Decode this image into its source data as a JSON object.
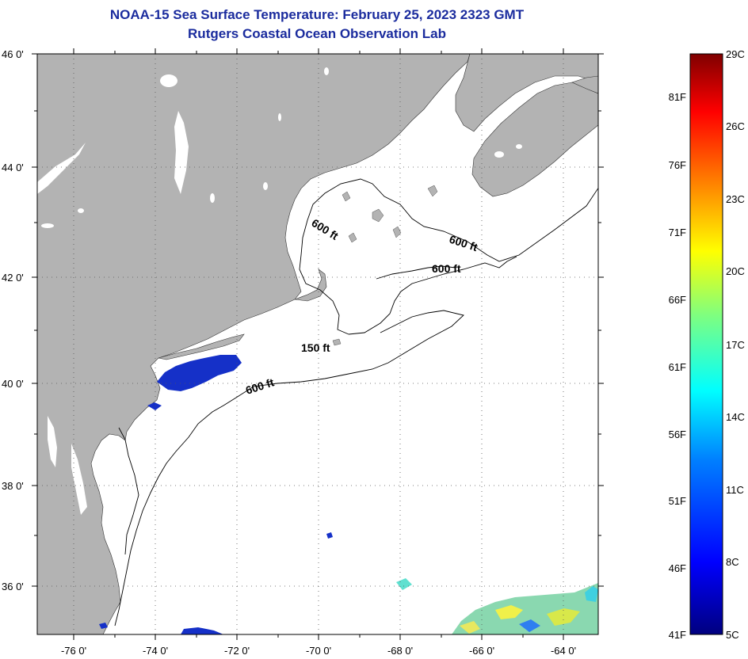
{
  "header": {
    "title": "NOAA-15 Sea Surface Temperature:  February 25, 2023 2323 GMT",
    "subtitle": "Rutgers Coastal Ocean Observation Lab"
  },
  "map": {
    "lat_range": [
      35,
      46
    ],
    "lon_range": [
      -77,
      -63.4
    ],
    "lat_ticks": [
      {
        "value": 46,
        "label": "46 0'"
      },
      {
        "value": 44,
        "label": "44 0'"
      },
      {
        "value": 42,
        "label": "42 0'"
      },
      {
        "value": 40,
        "label": "40 0'"
      },
      {
        "value": 38,
        "label": "38 0'"
      },
      {
        "value": 36,
        "label": "36 0'"
      }
    ],
    "lon_ticks": [
      {
        "value": -76,
        "label": "-76 0'"
      },
      {
        "value": -74,
        "label": "-74 0'"
      },
      {
        "value": -72,
        "label": "-72 0'"
      },
      {
        "value": -70,
        "label": "-70 0'"
      },
      {
        "value": -68,
        "label": "-68 0'"
      },
      {
        "value": -66,
        "label": "-66 0'"
      },
      {
        "value": -64,
        "label": "-64 0'"
      }
    ],
    "contour_labels": [
      "600 ft",
      "600 ft",
      "600 ft",
      "150 ft",
      "600 ft"
    ],
    "colors": {
      "land": "#b3b3b3",
      "ocean": "#ffffff",
      "cold_patch": "#1530c8"
    }
  },
  "colorbar": {
    "celsius_labels": [
      "29C",
      "26C",
      "23C",
      "20C",
      "17C",
      "14C",
      "11C",
      "8C",
      "5C"
    ],
    "fahrenheit_labels": [
      "81F",
      "76F",
      "71F",
      "66F",
      "61F",
      "56F",
      "51F",
      "46F",
      "41F"
    ],
    "range_celsius": [
      5,
      29
    ],
    "gradient": [
      "#00007f",
      "#0000ff",
      "#007fff",
      "#00ffff",
      "#7fff7f",
      "#ffff00",
      "#ff7f00",
      "#ff0000",
      "#7f0000"
    ]
  }
}
